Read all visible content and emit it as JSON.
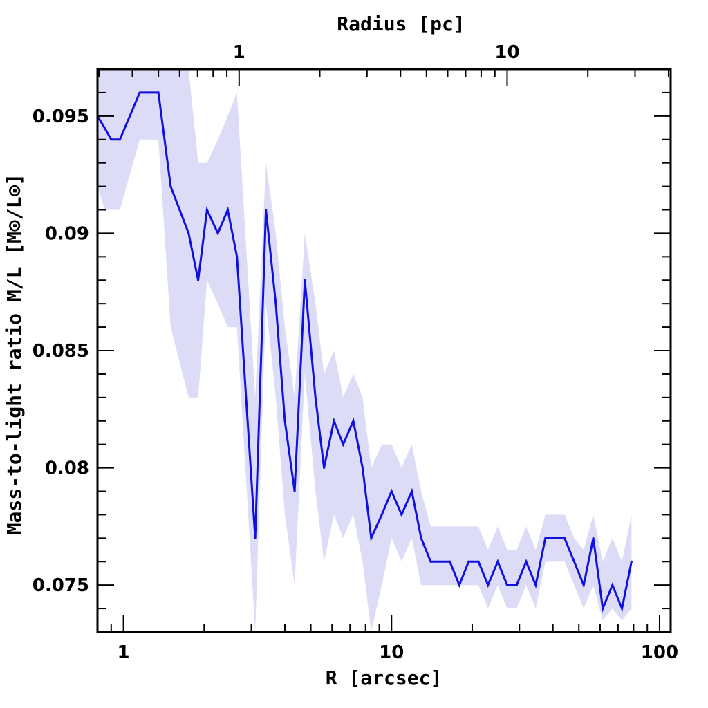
{
  "chart_data": {
    "type": "line",
    "x_scale": "log",
    "xlim": [
      0.8,
      110
    ],
    "ylim": [
      0.073,
      0.097
    ],
    "xlabel": "R [arcsec]",
    "ylabel": "Mass-to-light ratio M/L [M⊙/L⊙]",
    "top_axis_label": "Radius [pc]",
    "x_ticks": [
      {
        "value": 1,
        "label": "1"
      },
      {
        "value": 10,
        "label": "10"
      },
      {
        "value": 100,
        "label": "100"
      }
    ],
    "top_axis_ticks": [
      {
        "arcsec_position": 2.7,
        "label": "1"
      },
      {
        "arcsec_position": 27,
        "label": "10"
      }
    ],
    "y_ticks": [
      {
        "value": 0.075,
        "label": "0.075"
      },
      {
        "value": 0.08,
        "label": "0.08"
      },
      {
        "value": 0.085,
        "label": "0.085"
      },
      {
        "value": 0.09,
        "label": "0.09"
      },
      {
        "value": 0.095,
        "label": "0.095"
      }
    ],
    "line_color": "#1010e0",
    "band_color": "#dcdcf7",
    "series": [
      {
        "x": [
          0.8,
          0.85,
          0.9,
          0.97,
          1.15,
          1.35,
          1.5,
          1.75,
          1.9,
          2.05,
          2.25,
          2.45,
          2.65,
          3.1,
          3.4,
          3.7,
          4.0,
          4.35,
          4.75,
          5.2,
          5.6,
          6.1,
          6.6,
          7.2,
          7.8,
          8.4,
          9.2,
          10.0,
          10.9,
          11.9,
          12.9,
          14.0,
          15.2,
          16.5,
          17.9,
          19.4,
          21.1,
          22.9,
          24.9,
          27.0,
          29.3,
          31.8,
          34.5,
          37.5,
          40.7,
          44.2,
          48.0,
          52.1,
          56.6,
          61.4,
          66.7,
          72.4,
          78.6
        ],
        "y": [
          0.095,
          0.0945,
          0.094,
          0.094,
          0.096,
          0.096,
          0.092,
          0.09,
          0.088,
          0.091,
          0.09,
          0.091,
          0.089,
          0.077,
          0.091,
          0.087,
          0.082,
          0.079,
          0.088,
          0.083,
          0.08,
          0.082,
          0.081,
          0.082,
          0.08,
          0.077,
          0.078,
          0.079,
          0.078,
          0.079,
          0.077,
          0.076,
          0.076,
          0.076,
          0.075,
          0.076,
          0.076,
          0.075,
          0.076,
          0.075,
          0.075,
          0.076,
          0.075,
          0.077,
          0.077,
          0.077,
          0.076,
          0.075,
          0.077,
          0.074,
          0.075,
          0.074,
          0.076
        ],
        "y_low": [
          0.092,
          0.091,
          0.091,
          0.091,
          0.094,
          0.094,
          0.086,
          0.083,
          0.083,
          0.088,
          0.087,
          0.086,
          0.086,
          0.073,
          0.087,
          0.083,
          0.078,
          0.075,
          0.084,
          0.079,
          0.076,
          0.078,
          0.077,
          0.078,
          0.076,
          0.073,
          0.075,
          0.077,
          0.076,
          0.077,
          0.075,
          0.075,
          0.075,
          0.075,
          0.075,
          0.075,
          0.075,
          0.074,
          0.075,
          0.074,
          0.074,
          0.075,
          0.074,
          0.076,
          0.076,
          0.076,
          0.075,
          0.074,
          0.075,
          0.0735,
          0.074,
          0.0735,
          0.074
        ],
        "y_high": [
          0.097,
          0.097,
          0.097,
          0.097,
          0.097,
          0.097,
          0.097,
          0.097,
          0.093,
          0.093,
          0.094,
          0.095,
          0.096,
          0.083,
          0.093,
          0.09,
          0.086,
          0.083,
          0.09,
          0.087,
          0.084,
          0.085,
          0.083,
          0.084,
          0.083,
          0.08,
          0.081,
          0.081,
          0.08,
          0.081,
          0.079,
          0.0775,
          0.0775,
          0.0775,
          0.0775,
          0.0775,
          0.0775,
          0.0765,
          0.0775,
          0.0765,
          0.0765,
          0.0775,
          0.0765,
          0.078,
          0.078,
          0.078,
          0.077,
          0.0765,
          0.078,
          0.076,
          0.077,
          0.076,
          0.078
        ]
      }
    ]
  }
}
